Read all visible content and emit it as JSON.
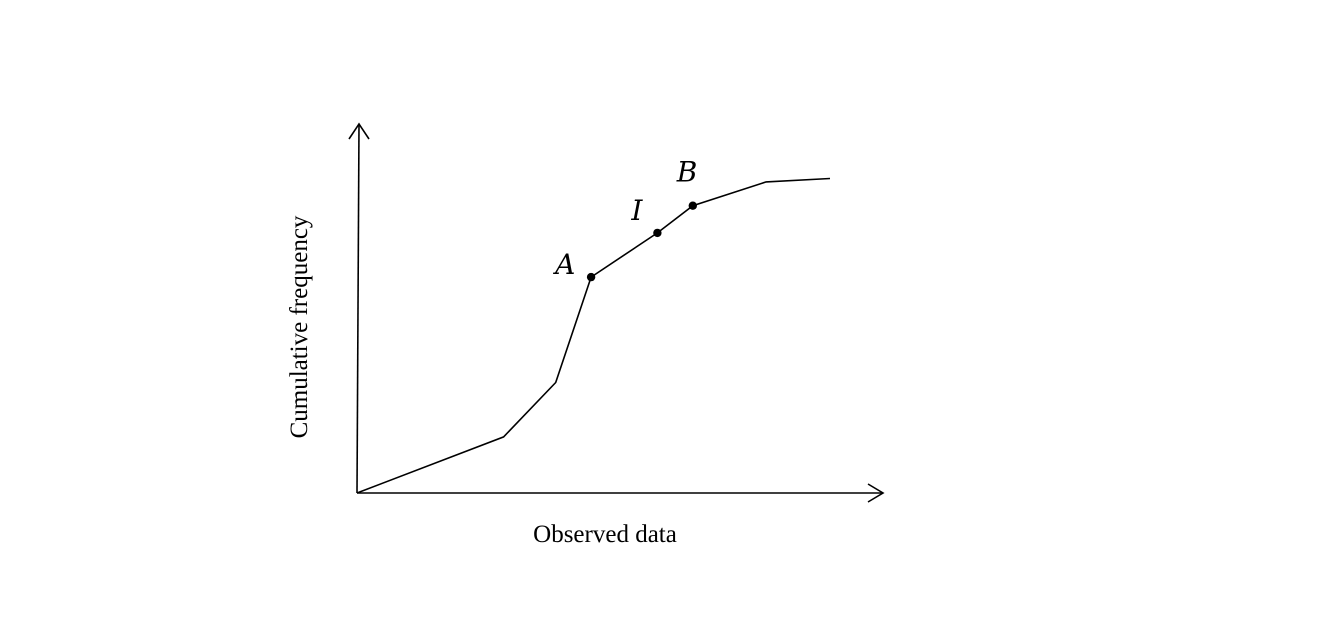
{
  "chart_data": {
    "type": "line",
    "title": "",
    "xlabel": "Observed data",
    "ylabel": "Cumulative frequency",
    "xlim": [
      0,
      10
    ],
    "ylim": [
      0,
      10
    ],
    "grid": false,
    "ticks_shown": false,
    "series": [
      {
        "values": [
          {
            "x": 0.0,
            "y": 0.0
          },
          {
            "x": 3.1,
            "y": 1.65
          },
          {
            "x": 4.2,
            "y": 3.25
          },
          {
            "x": 4.95,
            "y": 6.35
          },
          {
            "x": 6.35,
            "y": 7.65
          },
          {
            "x": 7.1,
            "y": 8.45
          },
          {
            "x": 8.65,
            "y": 9.15
          },
          {
            "x": 10.0,
            "y": 9.25
          }
        ]
      }
    ],
    "annotations": [
      {
        "label": "A",
        "x": 4.95,
        "y": 6.35
      },
      {
        "label": "I",
        "x": 6.35,
        "y": 7.65
      },
      {
        "label": "B",
        "x": 7.1,
        "y": 8.45
      }
    ]
  }
}
